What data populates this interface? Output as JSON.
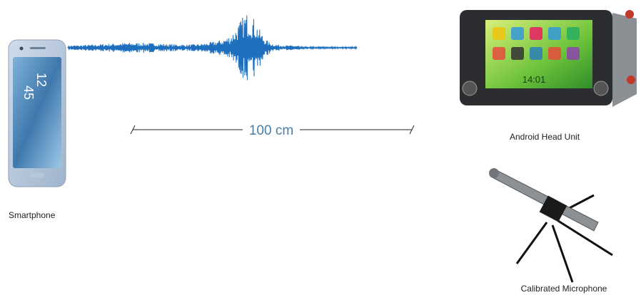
{
  "labels": {
    "smartphone": "Smartphone",
    "head_unit": "Android Head Unit",
    "microphone": "Calibrated Microphone",
    "distance": "100 cm"
  },
  "phone_screen": {
    "hour": "12",
    "minute": "45"
  },
  "head_unit_screen": {
    "time": "14:01"
  }
}
